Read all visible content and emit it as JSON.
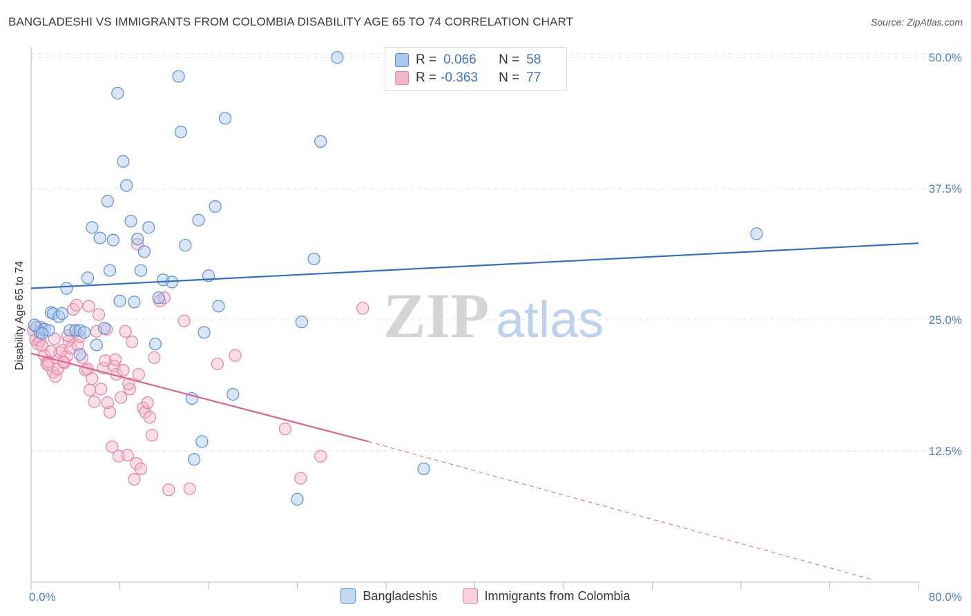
{
  "title": "BANGLADESHI VS IMMIGRANTS FROM COLOMBIA DISABILITY AGE 65 TO 74 CORRELATION CHART",
  "source": "Source: ZipAtlas.com",
  "watermark": {
    "zip": "ZIP",
    "atlas": "atlas"
  },
  "legend": {
    "r1_label": "R =",
    "r1_value": "0.066",
    "n1_label": "N =",
    "n1_value": "58",
    "r2_label": "R =",
    "r2_value": "-0.363",
    "n2_label": "N =",
    "n2_value": "77"
  },
  "colors": {
    "blue_fill": "#a9c8ee",
    "blue_stroke": "#5a8fd6",
    "blue_line": "#2f6fc7",
    "pink_fill": "#f4b7c9",
    "pink_stroke": "#e681a3",
    "pink_line": "#e0628f",
    "grid": "#dddddd",
    "tick_label": "#4a7cc8"
  },
  "chart_data": {
    "type": "scatter",
    "title": "BANGLADESHI VS IMMIGRANTS FROM COLOMBIA DISABILITY AGE 65 TO 74 CORRELATION CHART",
    "xlabel": "",
    "ylabel": "Disability Age 65 to 74",
    "xlim": [
      0,
      80
    ],
    "ylim": [
      0,
      51
    ],
    "y_ticks": [
      {
        "value": 12.5,
        "label": "12.5%"
      },
      {
        "value": 25.0,
        "label": "25.0%"
      },
      {
        "value": 37.5,
        "label": "37.5%"
      },
      {
        "value": 50.0,
        "label": "50.0%"
      }
    ],
    "x_tick_labels": [
      {
        "value": 0,
        "label": "0.0%"
      },
      {
        "value": 80,
        "label": "80.0%"
      }
    ],
    "grid": true,
    "legend_position": "top-center",
    "series": [
      {
        "name": "Bangladeshis",
        "color": "#a9c8ee",
        "trend": {
          "x0": 0,
          "y0": 28.0,
          "x1": 80,
          "y1": 32.3
        },
        "points": [
          [
            0.5,
            24.3
          ],
          [
            0.8,
            23.8
          ],
          [
            1.2,
            24.1
          ],
          [
            1.6,
            24.0
          ],
          [
            1.8,
            25.7
          ],
          [
            2.0,
            25.6
          ],
          [
            2.5,
            25.3
          ],
          [
            2.8,
            25.6
          ],
          [
            3.2,
            28.0
          ],
          [
            3.5,
            24.0
          ],
          [
            4.0,
            24.0
          ],
          [
            4.4,
            21.7
          ],
          [
            4.4,
            24.0
          ],
          [
            5.1,
            29.0
          ],
          [
            5.5,
            33.8
          ],
          [
            5.9,
            22.6
          ],
          [
            6.2,
            32.8
          ],
          [
            6.6,
            24.2
          ],
          [
            6.9,
            36.3
          ],
          [
            7.1,
            29.7
          ],
          [
            7.4,
            32.6
          ],
          [
            7.8,
            46.6
          ],
          [
            8.0,
            26.8
          ],
          [
            8.3,
            40.1
          ],
          [
            8.6,
            37.8
          ],
          [
            9.0,
            34.4
          ],
          [
            9.3,
            26.7
          ],
          [
            9.6,
            32.7
          ],
          [
            9.9,
            29.7
          ],
          [
            10.2,
            31.5
          ],
          [
            10.6,
            33.8
          ],
          [
            11.2,
            22.7
          ],
          [
            11.5,
            27.1
          ],
          [
            11.9,
            28.8
          ],
          [
            12.7,
            28.6
          ],
          [
            13.3,
            48.2
          ],
          [
            13.5,
            42.9
          ],
          [
            13.9,
            32.1
          ],
          [
            14.5,
            17.5
          ],
          [
            14.7,
            11.7
          ],
          [
            15.1,
            34.5
          ],
          [
            15.4,
            13.4
          ],
          [
            15.6,
            23.8
          ],
          [
            16.0,
            29.2
          ],
          [
            16.6,
            35.8
          ],
          [
            16.9,
            26.3
          ],
          [
            17.5,
            44.2
          ],
          [
            18.2,
            17.9
          ],
          [
            24.0,
            7.9
          ],
          [
            24.4,
            24.8
          ],
          [
            25.5,
            30.8
          ],
          [
            26.1,
            42.0
          ],
          [
            27.6,
            50.0
          ],
          [
            35.4,
            10.8
          ],
          [
            65.4,
            33.2
          ],
          [
            0.3,
            24.5
          ],
          [
            1.0,
            23.7
          ],
          [
            4.8,
            23.8
          ]
        ]
      },
      {
        "name": "Immigrants from Colombia",
        "color": "#f4b7c9",
        "trend": {
          "x0": 0,
          "y0": 21.8,
          "x1": 30.4,
          "y1": 13.4,
          "dash_x1": 76.0,
          "dash_y1": 0.2
        },
        "points": [
          [
            0.2,
            24.0
          ],
          [
            0.4,
            23.1
          ],
          [
            0.6,
            22.7
          ],
          [
            0.8,
            23.0
          ],
          [
            1.0,
            22.5
          ],
          [
            1.2,
            21.6
          ],
          [
            1.4,
            20.9
          ],
          [
            1.6,
            21.0
          ],
          [
            1.8,
            22.0
          ],
          [
            2.0,
            20.0
          ],
          [
            2.2,
            19.6
          ],
          [
            2.4,
            20.3
          ],
          [
            2.6,
            21.9
          ],
          [
            2.8,
            22.1
          ],
          [
            3.0,
            20.9
          ],
          [
            3.2,
            21.5
          ],
          [
            3.4,
            23.0
          ],
          [
            3.6,
            22.3
          ],
          [
            3.8,
            26.0
          ],
          [
            4.0,
            23.9
          ],
          [
            4.2,
            22.6
          ],
          [
            4.4,
            23.4
          ],
          [
            4.6,
            21.4
          ],
          [
            4.9,
            20.2
          ],
          [
            5.1,
            20.3
          ],
          [
            5.3,
            18.3
          ],
          [
            5.5,
            19.4
          ],
          [
            5.7,
            17.2
          ],
          [
            5.9,
            23.9
          ],
          [
            6.1,
            25.5
          ],
          [
            6.3,
            18.4
          ],
          [
            6.5,
            20.4
          ],
          [
            6.7,
            21.1
          ],
          [
            6.9,
            17.1
          ],
          [
            7.1,
            16.2
          ],
          [
            7.3,
            12.9
          ],
          [
            7.5,
            20.6
          ],
          [
            7.7,
            19.8
          ],
          [
            7.9,
            12.0
          ],
          [
            8.1,
            17.6
          ],
          [
            8.3,
            20.2
          ],
          [
            8.5,
            23.9
          ],
          [
            8.7,
            12.1
          ],
          [
            8.9,
            18.4
          ],
          [
            9.1,
            22.9
          ],
          [
            9.3,
            9.8
          ],
          [
            9.5,
            11.3
          ],
          [
            9.7,
            19.8
          ],
          [
            9.9,
            10.8
          ],
          [
            10.1,
            16.6
          ],
          [
            10.3,
            16.2
          ],
          [
            10.5,
            17.1
          ],
          [
            10.7,
            15.7
          ],
          [
            10.9,
            14.0
          ],
          [
            11.1,
            21.4
          ],
          [
            11.6,
            26.8
          ],
          [
            12.0,
            27.1
          ],
          [
            12.4,
            8.8
          ],
          [
            13.8,
            24.9
          ],
          [
            14.3,
            8.9
          ],
          [
            16.8,
            20.8
          ],
          [
            18.4,
            21.6
          ],
          [
            22.9,
            14.6
          ],
          [
            24.3,
            9.9
          ],
          [
            26.1,
            12.0
          ],
          [
            29.9,
            26.1
          ],
          [
            0.9,
            24.3
          ],
          [
            2.1,
            23.2
          ],
          [
            3.3,
            23.5
          ],
          [
            4.1,
            26.4
          ],
          [
            5.2,
            26.3
          ],
          [
            6.8,
            24.1
          ],
          [
            7.6,
            21.2
          ],
          [
            8.8,
            18.9
          ],
          [
            9.6,
            32.2
          ],
          [
            2.9,
            21.0
          ],
          [
            1.5,
            20.7
          ]
        ]
      }
    ]
  },
  "bottom_legend": {
    "series1": "Bangladeshis",
    "series2": "Immigrants from Colombia"
  }
}
